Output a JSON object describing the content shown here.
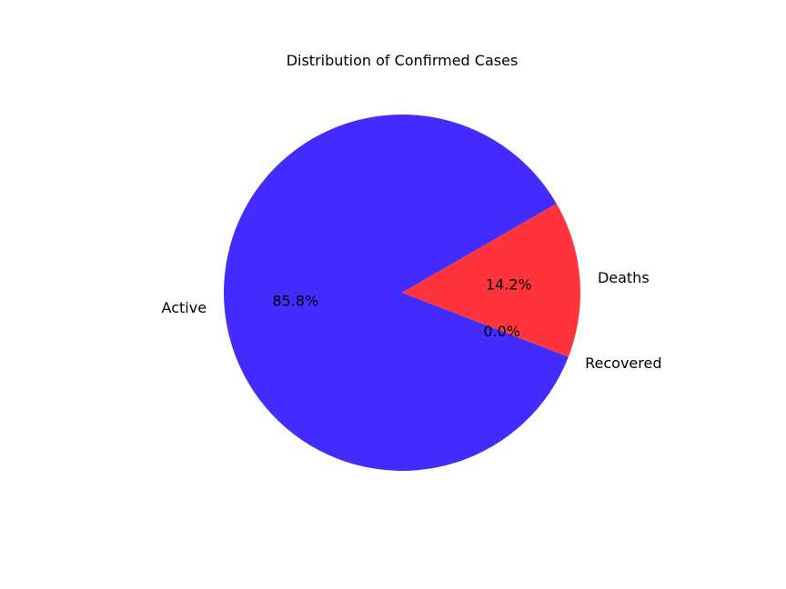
{
  "chart_data": {
    "type": "pie",
    "title": "Distribution of Confirmed Cases",
    "slices": [
      {
        "label": "Active",
        "value": 85.8,
        "pct_label": "85.8%",
        "color": "#422cff"
      },
      {
        "label": "Recovered",
        "value": 0.0,
        "pct_label": "0.0%",
        "color": "#37ff3a"
      },
      {
        "label": "Deaths",
        "value": 14.2,
        "pct_label": "14.2%",
        "color": "#ff343d"
      }
    ],
    "start_angle_degrees": 30,
    "direction": "counterclockwise",
    "legend": "none"
  }
}
